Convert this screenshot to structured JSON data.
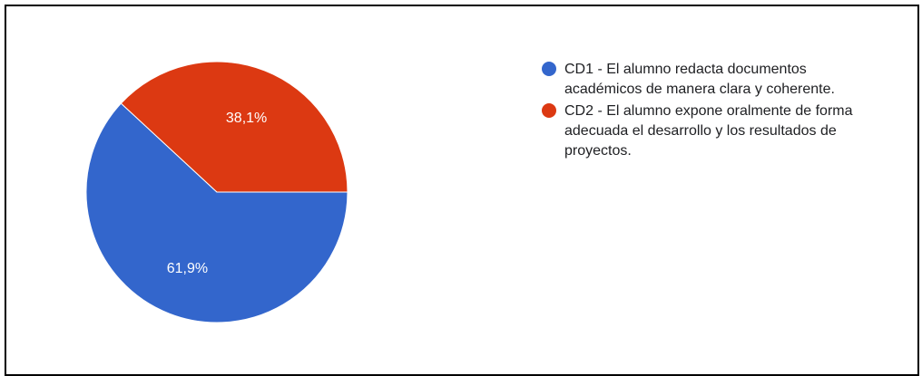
{
  "chart_data": {
    "type": "pie",
    "title": "",
    "slices": [
      {
        "label": "CD1 - El alumno redacta documentos académicos de manera clara y coherente.",
        "value": 61.9,
        "display": "61,9%",
        "color": "#3366cc"
      },
      {
        "label": "CD2 - El alumno expone oralmente de forma adecuada el desarrollo y los resultados de proyectos.",
        "value": 38.1,
        "display": "38,1%",
        "color": "#dc3912"
      }
    ],
    "legend": "right"
  }
}
